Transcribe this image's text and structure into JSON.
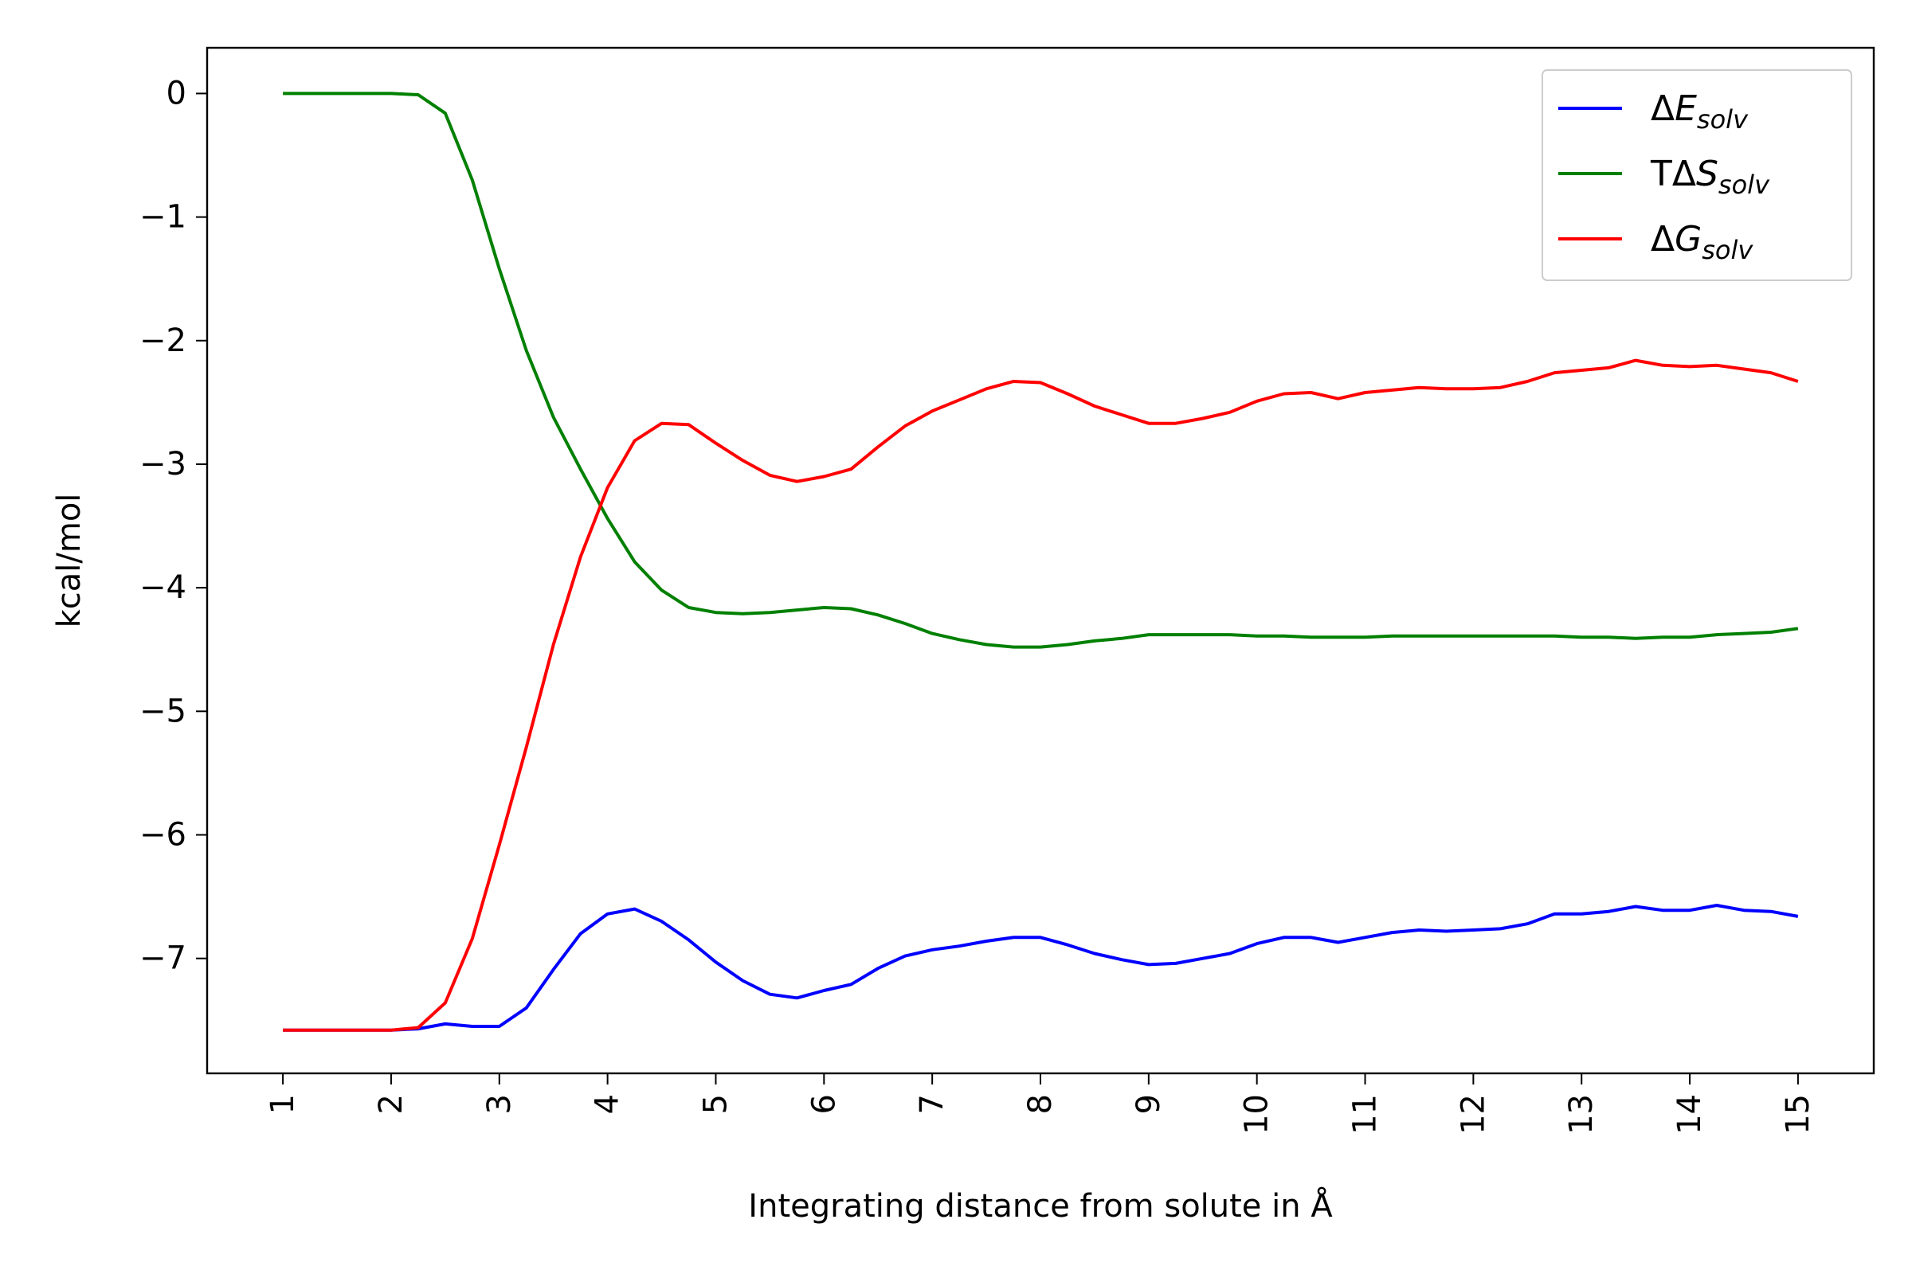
{
  "chart_data": {
    "type": "line",
    "title": "",
    "xlabel": "Integrating distance from solute in Å",
    "ylabel": "kcal/mol",
    "xlim": [
      0.3,
      15.7
    ],
    "ylim": [
      -7.93,
      0.37
    ],
    "grid": false,
    "legend_position": "top-right",
    "x_ticks": [
      "1",
      "2",
      "3",
      "4",
      "5",
      "6",
      "7",
      "8",
      "9",
      "10",
      "11",
      "12",
      "13",
      "14",
      "15"
    ],
    "y_ticks": [
      "0",
      "−1",
      "−2",
      "−3",
      "−4",
      "−5",
      "−6",
      "−7"
    ],
    "x": [
      1,
      1.25,
      1.5,
      1.75,
      2,
      2.25,
      2.5,
      2.75,
      3,
      3.25,
      3.5,
      3.75,
      4,
      4.25,
      4.5,
      4.75,
      5,
      5.25,
      5.5,
      5.75,
      6,
      6.25,
      6.5,
      6.75,
      7,
      7.25,
      7.5,
      7.75,
      8,
      8.25,
      8.5,
      8.75,
      9,
      9.25,
      9.5,
      9.75,
      10,
      10.25,
      10.5,
      10.75,
      11,
      11.25,
      11.5,
      11.75,
      12,
      12.25,
      12.5,
      12.75,
      13,
      13.25,
      13.5,
      13.75,
      14,
      14.25,
      14.5,
      14.75,
      15
    ],
    "series": [
      {
        "name": "ΔE",
        "name_sub": "solv",
        "color": "#0000ff",
        "values": [
          -7.58,
          -7.58,
          -7.58,
          -7.58,
          -7.58,
          -7.57,
          -7.53,
          -7.55,
          -7.55,
          -7.4,
          -7.09,
          -6.8,
          -6.64,
          -6.6,
          -6.7,
          -6.85,
          -7.03,
          -7.18,
          -7.29,
          -7.32,
          -7.26,
          -7.21,
          -7.08,
          -6.98,
          -6.93,
          -6.9,
          -6.86,
          -6.83,
          -6.83,
          -6.89,
          -6.96,
          -7.01,
          -7.05,
          -7.04,
          -7.0,
          -6.96,
          -6.88,
          -6.83,
          -6.83,
          -6.87,
          -6.83,
          -6.79,
          -6.77,
          -6.78,
          -6.77,
          -6.76,
          -6.72,
          -6.64,
          -6.64,
          -6.62,
          -6.58,
          -6.61,
          -6.61,
          -6.57,
          -6.61,
          -6.62,
          -6.66
        ]
      },
      {
        "name": "TΔS",
        "name_sub": "solv",
        "color": "#008000",
        "values": [
          0.0,
          0.0,
          0.0,
          0.0,
          0.0,
          -0.01,
          -0.16,
          -0.7,
          -1.42,
          -2.08,
          -2.62,
          -3.04,
          -3.44,
          -3.79,
          -4.02,
          -4.16,
          -4.2,
          -4.21,
          -4.2,
          -4.18,
          -4.16,
          -4.17,
          -4.22,
          -4.29,
          -4.37,
          -4.42,
          -4.46,
          -4.48,
          -4.48,
          -4.46,
          -4.43,
          -4.41,
          -4.38,
          -4.38,
          -4.38,
          -4.38,
          -4.39,
          -4.39,
          -4.4,
          -4.4,
          -4.4,
          -4.39,
          -4.39,
          -4.39,
          -4.39,
          -4.39,
          -4.39,
          -4.39,
          -4.4,
          -4.4,
          -4.41,
          -4.4,
          -4.4,
          -4.38,
          -4.37,
          -4.36,
          -4.33
        ]
      },
      {
        "name": "ΔG",
        "name_sub": "solv",
        "color": "#ff0000",
        "values": [
          -7.58,
          -7.58,
          -7.58,
          -7.58,
          -7.58,
          -7.56,
          -7.36,
          -6.84,
          -6.08,
          -5.29,
          -4.46,
          -3.75,
          -3.19,
          -2.81,
          -2.67,
          -2.68,
          -2.83,
          -2.97,
          -3.09,
          -3.14,
          -3.1,
          -3.04,
          -2.86,
          -2.69,
          -2.57,
          -2.48,
          -2.39,
          -2.33,
          -2.34,
          -2.43,
          -2.53,
          -2.6,
          -2.67,
          -2.67,
          -2.63,
          -2.58,
          -2.49,
          -2.43,
          -2.42,
          -2.47,
          -2.42,
          -2.4,
          -2.38,
          -2.39,
          -2.39,
          -2.38,
          -2.33,
          -2.26,
          -2.24,
          -2.22,
          -2.16,
          -2.2,
          -2.21,
          -2.2,
          -2.23,
          -2.26,
          -2.33
        ]
      }
    ]
  }
}
